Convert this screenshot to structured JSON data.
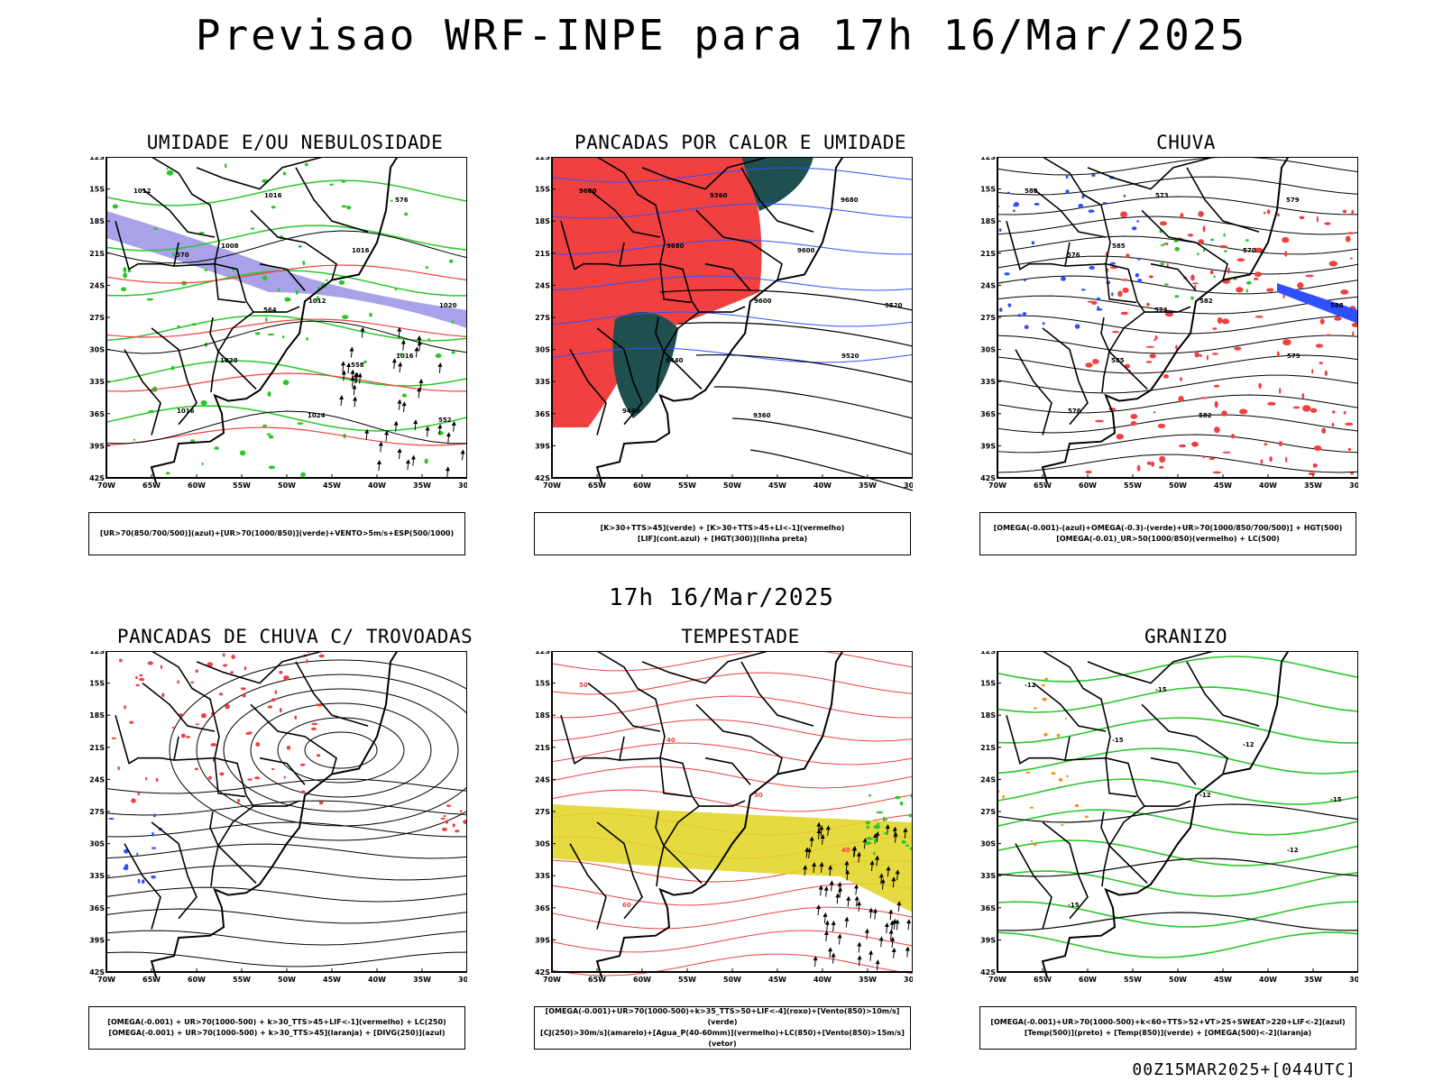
{
  "title": "Previsao WRF-INPE  para 17h 16/Mar/2025",
  "mid_title": "17h 16/Mar/2025",
  "footer": "00Z15MAR2025+[044UTC]",
  "axes": {
    "lat_labels": [
      "12S",
      "15S",
      "18S",
      "21S",
      "24S",
      "27S",
      "30S",
      "33S",
      "36S",
      "39S",
      "42S"
    ],
    "lon_labels": [
      "70W",
      "65W",
      "60W",
      "55W",
      "50W",
      "45W",
      "40W",
      "35W",
      "30W"
    ]
  },
  "colors": {
    "blue": "#a9a2e8",
    "green": "#28c828",
    "red": "#f04040",
    "dark": "#1f4f4f",
    "yellow": "#e2d62a",
    "orange": "#ff8c1a",
    "contour_blue": "#3050ff"
  },
  "panels": [
    {
      "id": "umidade",
      "title": "UMIDADE E/OU NEBULOSIDADE",
      "legend": [
        "[UR>70(850/700/500)](azul)+[UR>70(1000/850)](verde)+VENTO>5m/s+ESP(500/1000)"
      ],
      "contour_labels": [
        "1012",
        "1008",
        "1012",
        "1016",
        "1016",
        "1016",
        "1016",
        "1020",
        "1020",
        "1024",
        "576",
        "570",
        "564",
        "558",
        "552"
      ]
    },
    {
      "id": "pancadas-calor",
      "title": "PANCADAS POR CALOR E UMIDADE",
      "legend": [
        "[K>30+TTS>45](verde) + [K>30+TTS>45+LI<-1](vermelho)",
        "[LIF](cont.azul) + [HGT(300)](linha preta)"
      ],
      "contour_labels": [
        "9680",
        "9680",
        "9600",
        "9520",
        "9440",
        "9360",
        "9600",
        "9520",
        "9440",
        "9360",
        "9680"
      ]
    },
    {
      "id": "chuva",
      "title": "CHUVA",
      "legend": [
        "[OMEGA(-0.001)-(azul)+OMEGA(-0.3)-(verde)+UR>70(1000/850/700/500)] + HGT(500)",
        "[OMEGA(-0.01)_UR>50(1000/850)(vermelho) + LC(500)"
      ],
      "contour_labels": [
        "588",
        "585",
        "582",
        "579",
        "576",
        "573",
        "570",
        "588",
        "585",
        "582",
        "579",
        "576",
        "573"
      ]
    },
    {
      "id": "trovoadas",
      "title": "PANCADAS DE CHUVA C/ TROVOADAS",
      "legend": [
        "[OMEGA(-0.001) + UR>70(1000-500) + k>30_TTS>45+LIF<-1](vermelho) + LC(250)",
        "[OMEGA(-0.001) + UR>70(1000-500) + k>30_TTS>45](laranja) + [DIVG(250)](azul)"
      ],
      "contour_labels": []
    },
    {
      "id": "tempestade",
      "title": "TEMPESTADE",
      "legend": [
        "[OMEGA(-0.001)+UR>70(1000-500)+k>35_TTS>50+LIF<-4](roxo)+[Vento(850)>10m/s](verde)",
        "[CJ(250)>30m/s](amarelo)+[Agua_P(40-60mm)](vermelho)+LC(850)+[Vento(850)>15m/s](vetor)"
      ],
      "contour_labels": [
        "50",
        "40",
        "50",
        "40",
        "60"
      ]
    },
    {
      "id": "granizo",
      "title": "GRANIZO",
      "legend": [
        "[OMEGA(-0.001)+UR>70(1000-500)+k<60+TTS>52+VT>25+SWEAT>220+LIF<-2](azul)",
        "[Temp(500)](preto) + [Temp(850)](verde) + [OMEGA(500)<-2](laranja)"
      ],
      "contour_labels": [
        "-12",
        "-15",
        "-12",
        "-12",
        "-15",
        "-15",
        "-12",
        "-15"
      ]
    }
  ]
}
